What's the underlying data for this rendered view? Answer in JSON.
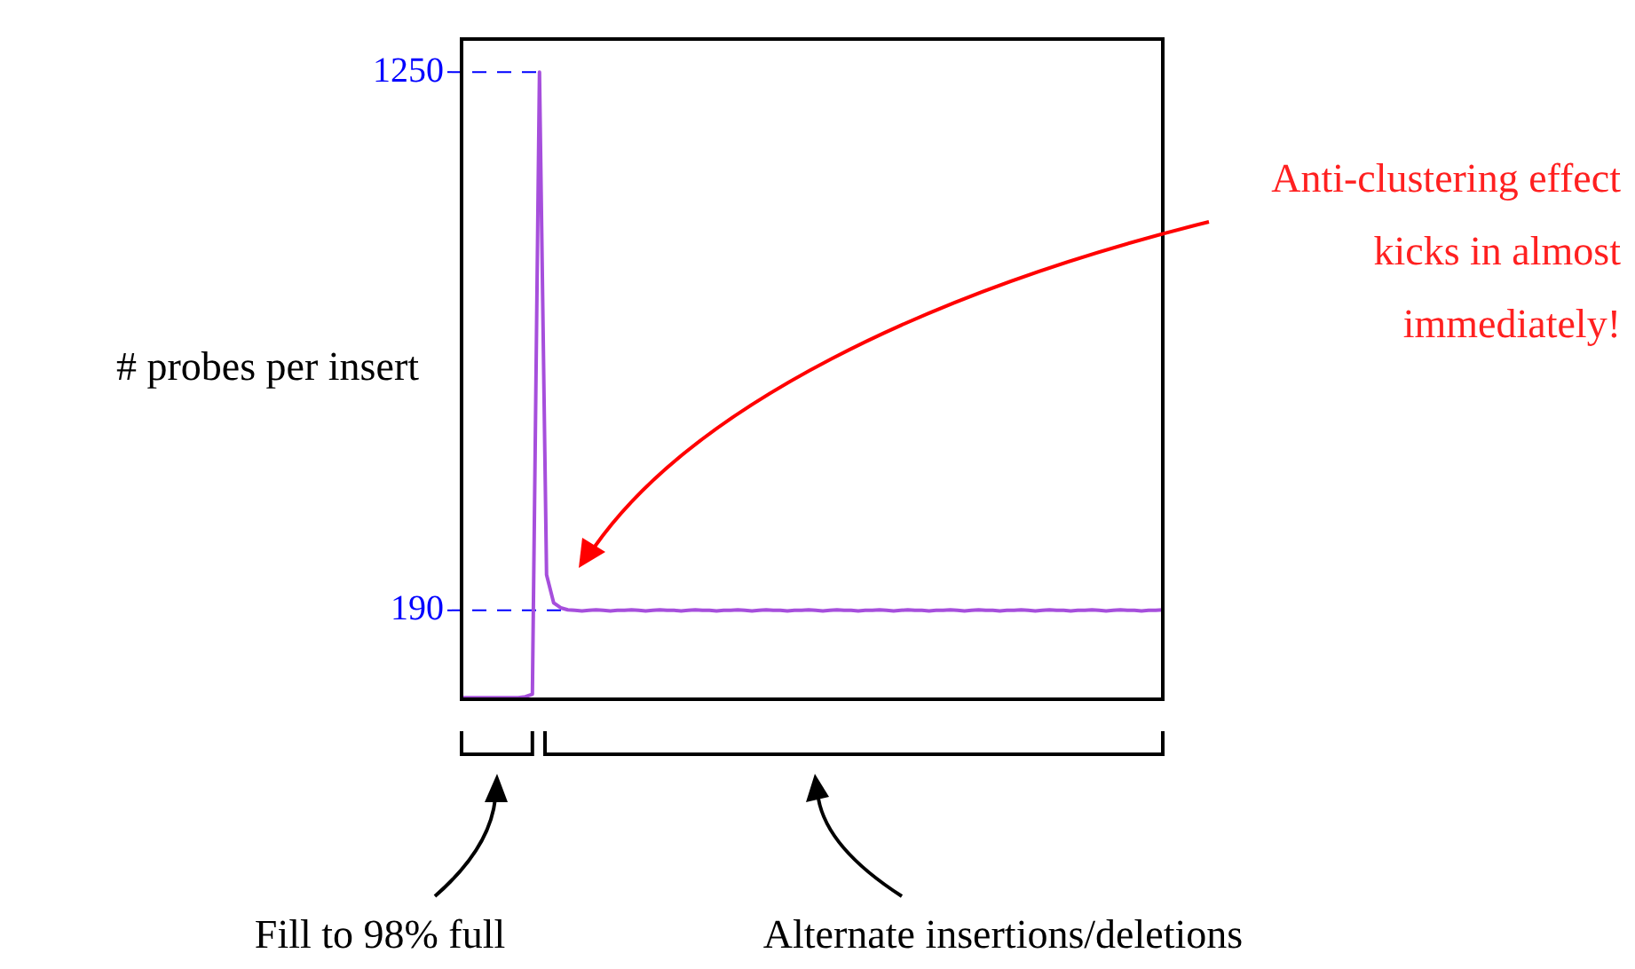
{
  "chart_data": {
    "type": "line",
    "ylabel": "# probes per insert",
    "categories": [
      null,
      null,
      null,
      null,
      null,
      null,
      null,
      null,
      null,
      null,
      null,
      null,
      null,
      null,
      null,
      null,
      null,
      null,
      null,
      null,
      null,
      null,
      null,
      null,
      null,
      null,
      null,
      null,
      null,
      null,
      null,
      null,
      null,
      null,
      null,
      null,
      null,
      null,
      null,
      null,
      null,
      null,
      null,
      null,
      null,
      null,
      null,
      null,
      null,
      null,
      null,
      null,
      null,
      null,
      null,
      null,
      null,
      null,
      null,
      null,
      null,
      null,
      null,
      null,
      null,
      null,
      null,
      null,
      null,
      null,
      null,
      null,
      null,
      null,
      null,
      null,
      null,
      null,
      null,
      null,
      null,
      null,
      null,
      null,
      null,
      null,
      null,
      null,
      null,
      null,
      null,
      null,
      null,
      null,
      null,
      null,
      null,
      null,
      null,
      null
    ],
    "series": [
      {
        "color": "#a64fdc",
        "values": [
          18,
          18,
          18,
          18,
          18,
          18,
          18,
          18,
          18,
          20,
          25,
          1250,
          260,
          205,
          195,
          191,
          190,
          189,
          190,
          191,
          190,
          189,
          190,
          190,
          191,
          190,
          189,
          190,
          191,
          190,
          190,
          189,
          190,
          191,
          190,
          190,
          189,
          190,
          190,
          191,
          190,
          189,
          190,
          191,
          190,
          190,
          189,
          190,
          190,
          191,
          190,
          189,
          190,
          191,
          190,
          190,
          189,
          190,
          190,
          191,
          190,
          189,
          190,
          191,
          190,
          190,
          189,
          190,
          190,
          191,
          190,
          189,
          190,
          191,
          190,
          190,
          189,
          190,
          190,
          191,
          190,
          189,
          190,
          191,
          190,
          190,
          189,
          190,
          190,
          191,
          190,
          189,
          190,
          191,
          190,
          190,
          189,
          190,
          190,
          191
        ]
      }
    ],
    "ylim": [
      15,
      1315
    ],
    "yticks": [
      190,
      1250
    ],
    "ref_lines": [
      {
        "axis": "y",
        "value": 1250,
        "color": "#0000ff",
        "line_style": "dashed"
      },
      {
        "axis": "y",
        "value": 190,
        "color": "#0000ff",
        "line_style": "dashed"
      }
    ],
    "annotations": [
      "Anti-clustering effect kicks in almost immediately!",
      "Fill to 98% full",
      "Alternate insertions/deletions"
    ],
    "grid": false,
    "legend": false,
    "tick_labels": "y",
    "marker": "none"
  }
}
